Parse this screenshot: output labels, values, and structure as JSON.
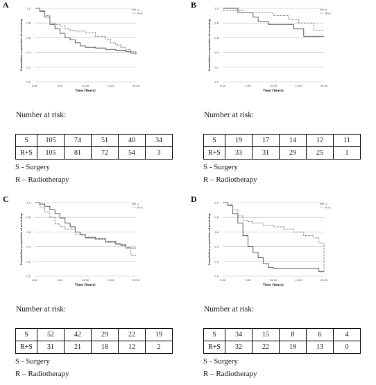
{
  "panels": [
    {
      "letter": "A",
      "legend": [
        "S",
        "R+S"
      ],
      "y_ticks": [
        "1.0",
        "0.8",
        "0.6",
        "0.4",
        "0.2",
        "0.0"
      ],
      "x_ticks": [
        "0.00",
        "5.00",
        "10.00",
        "15.00",
        "20.00"
      ],
      "xlabel": "Time (Years)",
      "ylabel": "Cumulative proportion of surviving",
      "risk_title": "Number at risk:",
      "risk_rows": [
        {
          "label": "S",
          "values": [
            "105",
            "74",
            "51",
            "40",
            "34"
          ]
        },
        {
          "label": "R+S",
          "values": [
            "105",
            "81",
            "72",
            "54",
            "3"
          ]
        }
      ],
      "notes": [
        "S - Surgery",
        "R – Radiotherapy"
      ]
    },
    {
      "letter": "B",
      "legend": [
        "S",
        "R+S"
      ],
      "y_ticks": [
        "1.0",
        "0.8",
        "0.6",
        "0.4",
        "0.2",
        "0.0"
      ],
      "x_ticks": [
        "0.00",
        "5.00",
        "10.00",
        "15.00",
        "20.00"
      ],
      "xlabel": "Time (Years)",
      "ylabel": "Cumulative proportion of surviving",
      "risk_title": "Number at risk:",
      "risk_rows": [
        {
          "label": "S",
          "values": [
            "19",
            "17",
            "14",
            "12",
            "11"
          ]
        },
        {
          "label": "R+S",
          "values": [
            "33",
            "31",
            "29",
            "25",
            "1"
          ]
        }
      ],
      "notes": [
        "S - Surgery",
        "R – Radiotherapy"
      ]
    },
    {
      "letter": "C",
      "legend": [
        "S",
        "R+S"
      ],
      "y_ticks": [
        "1.0",
        "0.8",
        "0.6",
        "0.4",
        "0.2",
        "0.0"
      ],
      "x_ticks": [
        "0.00",
        "5.00",
        "10.00",
        "15.00",
        "20.00"
      ],
      "xlabel": "Time (Years)",
      "ylabel": "Cumulative proportion of surviving",
      "risk_title": "Number at risk:",
      "risk_rows": [
        {
          "label": "S",
          "values": [
            "52",
            "42",
            "29",
            "22",
            "19"
          ]
        },
        {
          "label": "R+S",
          "values": [
            "31",
            "21",
            "18",
            "12",
            "2"
          ]
        }
      ],
      "notes": [
        "S - Surgery",
        "R – Radiotherapy"
      ]
    },
    {
      "letter": "D",
      "legend": [
        "S",
        "R+S"
      ],
      "y_ticks": [
        "1.0",
        "0.8",
        "0.6",
        "0.4",
        "0.2",
        "0.0"
      ],
      "x_ticks": [
        "0.00",
        "5.00",
        "10.00",
        "15.00",
        "20.00"
      ],
      "xlabel": "Time (Years)",
      "ylabel": "Cumulative proportion of surviving",
      "risk_title": "Number at risk:",
      "risk_rows": [
        {
          "label": "S",
          "values": [
            "34",
            "15",
            "8",
            "6",
            "4"
          ]
        },
        {
          "label": "R+S",
          "values": [
            "32",
            "22",
            "19",
            "13",
            "0"
          ]
        }
      ],
      "notes": [
        "S - Surgery",
        "R – Radiotherapy"
      ]
    }
  ],
  "chart_data": [
    {
      "type": "line",
      "xlim": [
        0,
        20
      ],
      "ylim": [
        0,
        1
      ],
      "grid": "horizontal",
      "legend_position": "top-right",
      "series": [
        {
          "name": "S",
          "style": "solid",
          "x": [
            0,
            1,
            2,
            3,
            4,
            5,
            6,
            7,
            8,
            9,
            10,
            12,
            14,
            16,
            18,
            19,
            20
          ],
          "y": [
            1.0,
            0.96,
            0.88,
            0.78,
            0.72,
            0.66,
            0.6,
            0.57,
            0.53,
            0.49,
            0.47,
            0.46,
            0.44,
            0.43,
            0.41,
            0.39,
            0.37
          ]
        },
        {
          "name": "R+S",
          "style": "dashed",
          "x": [
            0,
            1,
            2,
            3,
            4,
            5,
            6,
            7,
            8,
            10,
            12,
            14,
            15,
            16,
            17,
            18,
            19,
            20
          ],
          "y": [
            1.0,
            0.97,
            0.9,
            0.8,
            0.78,
            0.76,
            0.72,
            0.7,
            0.69,
            0.67,
            0.62,
            0.58,
            0.53,
            0.5,
            0.47,
            0.44,
            0.41,
            0.37
          ]
        }
      ]
    },
    {
      "type": "line",
      "xlim": [
        0,
        20
      ],
      "ylim": [
        0,
        1
      ],
      "grid": "horizontal",
      "legend_position": "top-right",
      "series": [
        {
          "name": "S",
          "style": "solid",
          "x": [
            0,
            2,
            3,
            6,
            7,
            9,
            14,
            16,
            20
          ],
          "y": [
            1.0,
            1.0,
            0.94,
            0.88,
            0.82,
            0.78,
            0.72,
            0.62,
            0.62
          ]
        },
        {
          "name": "R+S",
          "style": "dashed",
          "x": [
            0,
            3,
            4,
            10,
            13,
            15,
            18,
            20
          ],
          "y": [
            0.97,
            0.97,
            0.94,
            0.9,
            0.85,
            0.8,
            0.7,
            0.7
          ]
        }
      ]
    },
    {
      "type": "line",
      "xlim": [
        0,
        20
      ],
      "ylim": [
        0,
        1
      ],
      "grid": "horizontal",
      "legend_position": "top-right",
      "series": [
        {
          "name": "S",
          "style": "solid",
          "x": [
            0,
            1,
            2,
            3,
            4,
            5,
            6,
            7,
            8,
            9,
            10,
            12,
            14,
            16,
            17,
            18,
            20
          ],
          "y": [
            1.0,
            0.98,
            0.95,
            0.9,
            0.85,
            0.79,
            0.72,
            0.67,
            0.6,
            0.56,
            0.52,
            0.51,
            0.47,
            0.44,
            0.42,
            0.38,
            0.38
          ]
        },
        {
          "name": "R+S",
          "style": "dashed",
          "x": [
            0,
            1,
            2,
            3,
            4,
            5,
            6,
            8,
            10,
            12,
            14,
            16,
            18,
            19,
            20
          ],
          "y": [
            1.0,
            0.94,
            0.87,
            0.8,
            0.71,
            0.67,
            0.64,
            0.57,
            0.53,
            0.5,
            0.46,
            0.43,
            0.39,
            0.28,
            0.28
          ]
        }
      ]
    },
    {
      "type": "line",
      "xlim": [
        0,
        20
      ],
      "ylim": [
        0,
        1
      ],
      "grid": "horizontal",
      "legend_position": "top-right",
      "series": [
        {
          "name": "S",
          "style": "solid",
          "x": [
            0,
            1,
            2,
            3,
            4,
            5,
            6,
            7,
            8,
            9,
            10,
            14,
            16,
            19,
            20
          ],
          "y": [
            1.0,
            0.96,
            0.85,
            0.72,
            0.55,
            0.4,
            0.32,
            0.25,
            0.17,
            0.12,
            0.1,
            0.1,
            0.1,
            0.06,
            0.06
          ]
        },
        {
          "name": "R+S",
          "style": "dashed",
          "x": [
            0,
            1,
            2,
            3,
            4,
            5,
            6,
            8,
            10,
            12,
            14,
            16,
            18,
            19,
            20
          ],
          "y": [
            1.0,
            0.97,
            0.9,
            0.82,
            0.76,
            0.74,
            0.72,
            0.69,
            0.67,
            0.64,
            0.6,
            0.55,
            0.52,
            0.45,
            0.06
          ]
        }
      ]
    }
  ]
}
